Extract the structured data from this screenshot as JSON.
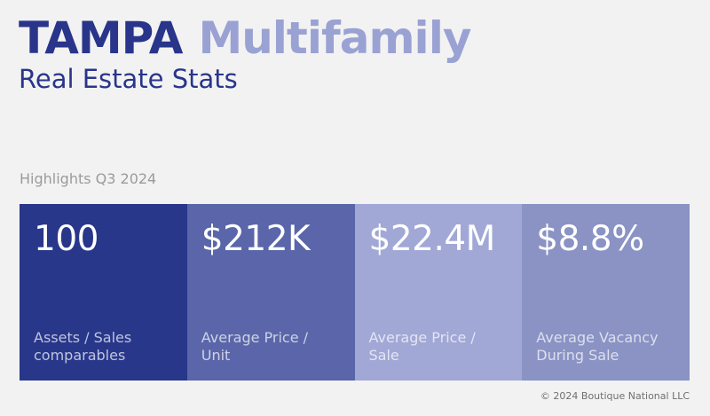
{
  "header": {
    "city": "TAMPA",
    "segment": "Multifamily",
    "subtitle": "Real Estate Stats"
  },
  "highlights_label": "Highlights Q3 2024",
  "stats": [
    {
      "value": "100",
      "label": "Assets / Sales\ncomparables"
    },
    {
      "value": "$212K",
      "label": "Average Price /\nUnit"
    },
    {
      "value": "$22.4M",
      "label": "Average Price /\nSale"
    },
    {
      "value": "$8.8%",
      "label": "Average Vacancy\nDuring Sale"
    }
  ],
  "footer": "© 2024 Boutique National LLC",
  "colors": {
    "background": "#f2f2f2",
    "navy": "#28358a",
    "lavender": "#9aa2d3",
    "card_1": "#28378a",
    "card_2": "#5a66a9",
    "card_3": "#a1a8d6",
    "card_4": "#8a93c4"
  }
}
